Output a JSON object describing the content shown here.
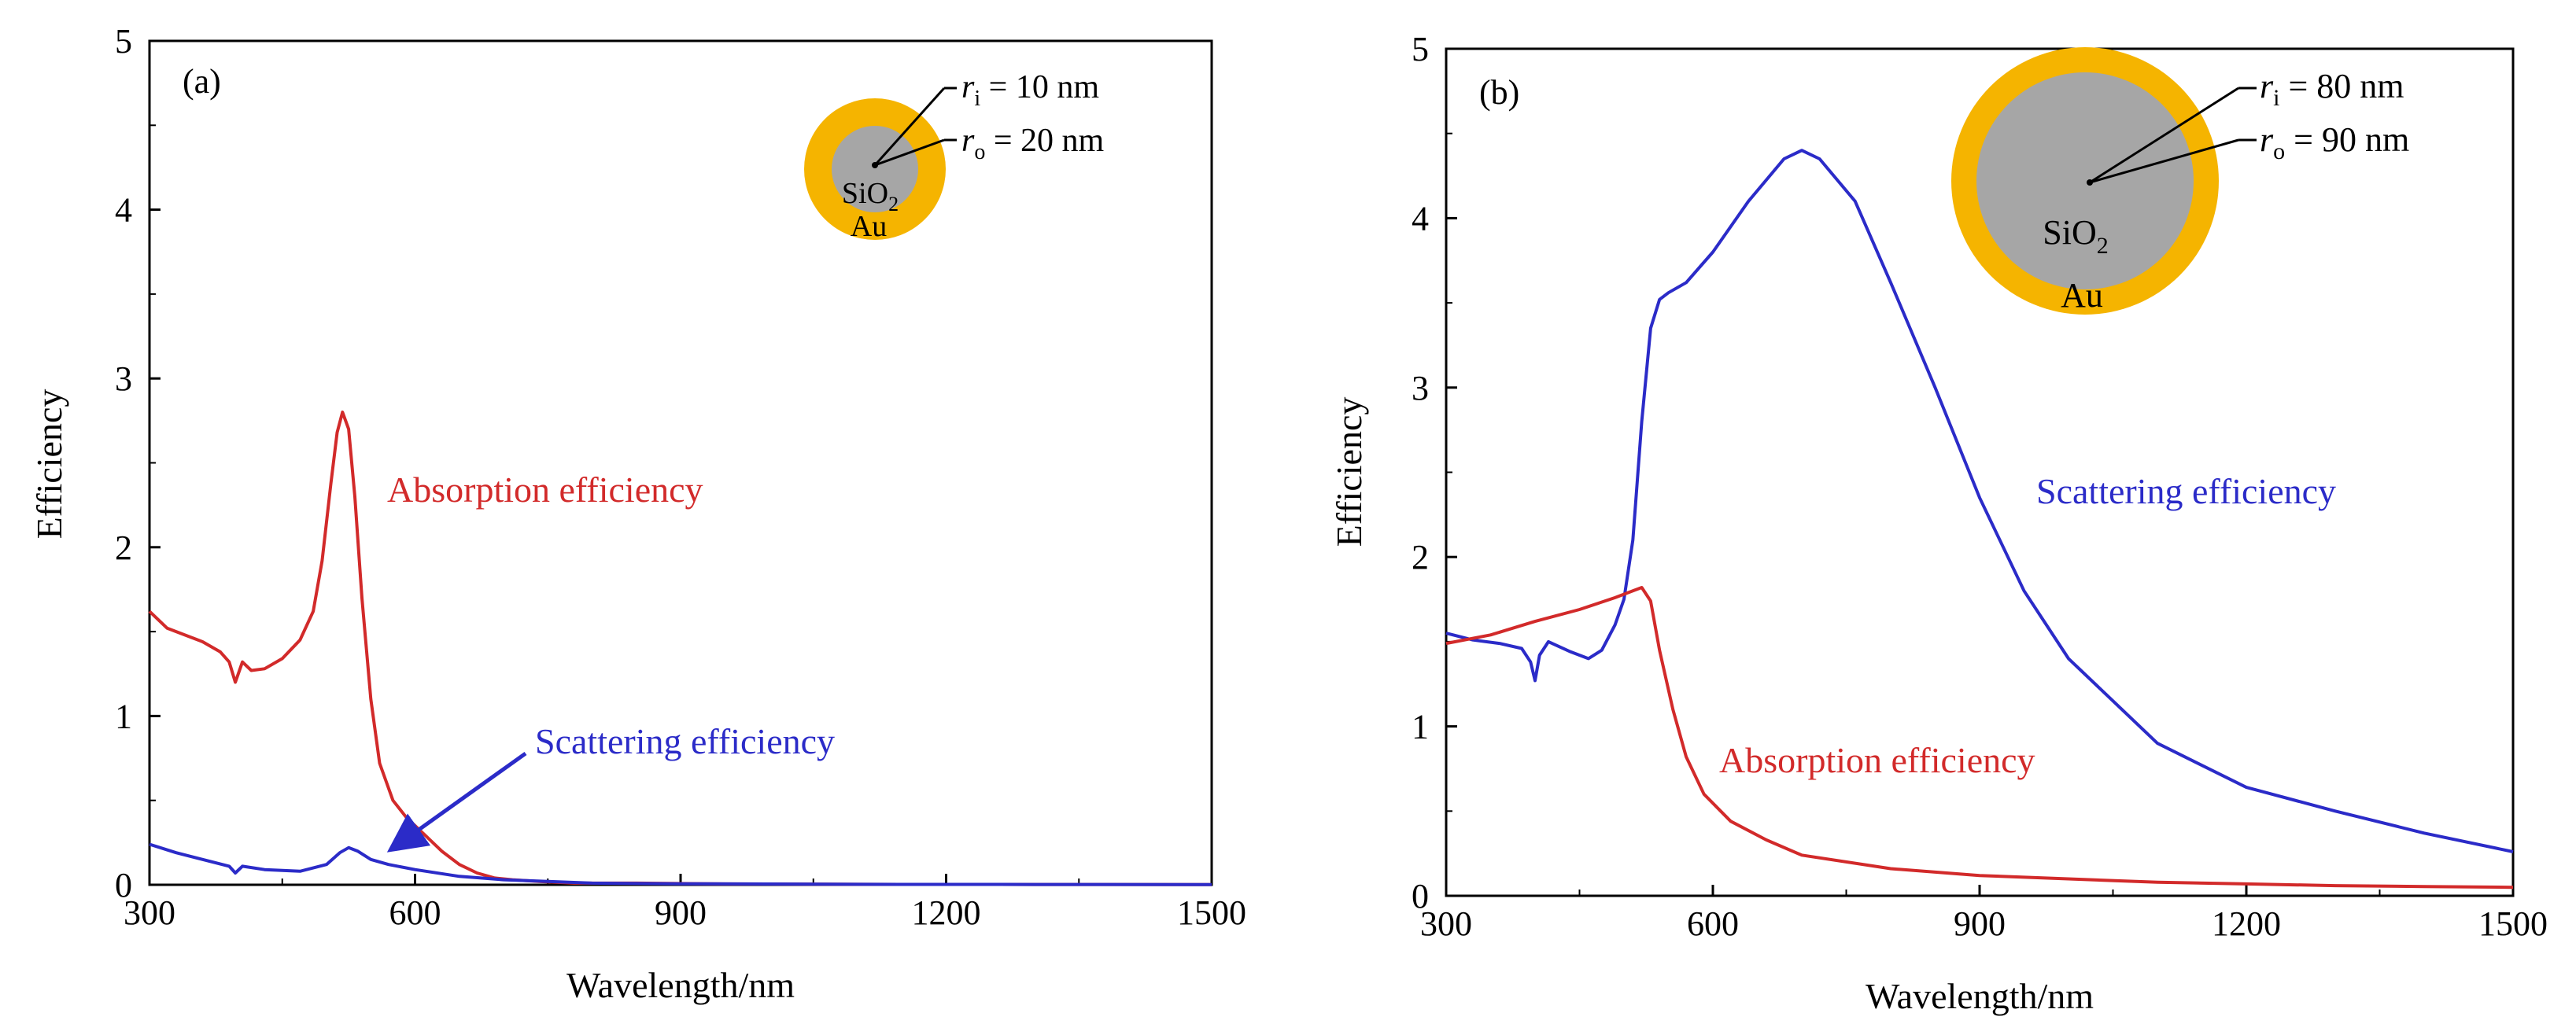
{
  "chart_data": [
    {
      "type": "line",
      "panel_label": "(a)",
      "xlabel": "Wavelength/nm",
      "ylabel": "Efficiency",
      "xlim": [
        300,
        1500
      ],
      "ylim": [
        0,
        5
      ],
      "xticks": [
        300,
        600,
        900,
        1200,
        1500
      ],
      "yticks": [
        0,
        1,
        2,
        3,
        4,
        5
      ],
      "series": [
        {
          "name": "Absorption efficiency",
          "color": "#d22a2a",
          "x": [
            300,
            320,
            340,
            360,
            380,
            390,
            397,
            405,
            415,
            430,
            450,
            470,
            485,
            495,
            505,
            512,
            518,
            525,
            532,
            540,
            550,
            560,
            575,
            590,
            610,
            630,
            650,
            670,
            690,
            710,
            740,
            780,
            850,
            950,
            1100,
            1300,
            1500
          ],
          "y": [
            1.62,
            1.52,
            1.48,
            1.44,
            1.38,
            1.32,
            1.2,
            1.32,
            1.27,
            1.28,
            1.34,
            1.45,
            1.62,
            1.92,
            2.38,
            2.68,
            2.8,
            2.7,
            2.3,
            1.7,
            1.1,
            0.72,
            0.5,
            0.4,
            0.3,
            0.2,
            0.12,
            0.07,
            0.04,
            0.03,
            0.02,
            0.01,
            0.01,
            0.005,
            0.003,
            0.002,
            0.001
          ]
        },
        {
          "name": "Scattering efficiency",
          "color": "#2b2bc8",
          "x": [
            300,
            330,
            360,
            390,
            397,
            405,
            430,
            470,
            500,
            515,
            525,
            535,
            550,
            570,
            600,
            650,
            700,
            800,
            900,
            1100,
            1300,
            1500
          ],
          "y": [
            0.24,
            0.19,
            0.15,
            0.11,
            0.07,
            0.11,
            0.09,
            0.08,
            0.12,
            0.19,
            0.22,
            0.2,
            0.15,
            0.12,
            0.09,
            0.05,
            0.03,
            0.01,
            0.006,
            0.003,
            0.002,
            0.001
          ]
        }
      ],
      "annotations": [
        {
          "text": "Absorption efficiency",
          "color": "#d22a2a"
        },
        {
          "text": "Scattering efficiency",
          "color": "#2b2bc8"
        }
      ],
      "inset": {
        "core": "SiO",
        "core_sub": "2",
        "shell": "Au",
        "ri_label": "r",
        "ri_sub": "i",
        "ri_value": " = 10 nm",
        "ro_label": "r",
        "ro_sub": "o",
        "ro_value": " = 20 nm",
        "core_color": "#a6a6a6",
        "shell_color": "#f5b400"
      }
    },
    {
      "type": "line",
      "panel_label": "(b)",
      "xlabel": "Wavelength/nm",
      "ylabel": "Efficiency",
      "xlim": [
        300,
        1500
      ],
      "ylim": [
        0,
        5
      ],
      "xticks": [
        300,
        600,
        900,
        1200,
        1500
      ],
      "yticks": [
        0,
        1,
        2,
        3,
        4,
        5
      ],
      "series": [
        {
          "name": "Scattering efficiency",
          "color": "#2b2bc8",
          "x": [
            300,
            330,
            360,
            385,
            395,
            400,
            405,
            415,
            440,
            460,
            475,
            490,
            500,
            510,
            520,
            530,
            540,
            550,
            570,
            600,
            640,
            680,
            700,
            720,
            760,
            800,
            850,
            900,
            950,
            1000,
            1100,
            1200,
            1300,
            1400,
            1500
          ],
          "y": [
            1.55,
            1.51,
            1.49,
            1.46,
            1.38,
            1.27,
            1.42,
            1.5,
            1.44,
            1.4,
            1.45,
            1.6,
            1.75,
            2.1,
            2.8,
            3.35,
            3.52,
            3.56,
            3.62,
            3.8,
            4.1,
            4.35,
            4.4,
            4.35,
            4.1,
            3.62,
            3.0,
            2.35,
            1.8,
            1.4,
            0.9,
            0.64,
            0.5,
            0.37,
            0.26
          ]
        },
        {
          "name": "Absorption efficiency",
          "color": "#d22a2a",
          "x": [
            300,
            350,
            400,
            450,
            490,
            510,
            520,
            530,
            540,
            555,
            570,
            590,
            620,
            660,
            700,
            800,
            900,
            1000,
            1100,
            1200,
            1300,
            1400,
            1500
          ],
          "y": [
            1.49,
            1.54,
            1.62,
            1.69,
            1.76,
            1.8,
            1.82,
            1.74,
            1.45,
            1.1,
            0.82,
            0.6,
            0.44,
            0.33,
            0.24,
            0.16,
            0.12,
            0.1,
            0.08,
            0.07,
            0.06,
            0.055,
            0.05
          ]
        }
      ],
      "annotations": [
        {
          "text": "Scattering efficiency",
          "color": "#2b2bc8"
        },
        {
          "text": "Absorption efficiency",
          "color": "#d22a2a"
        }
      ],
      "inset": {
        "core": "SiO",
        "core_sub": "2",
        "shell": "Au",
        "ri_label": "r",
        "ri_sub": "i",
        "ri_value": " = 80 nm",
        "ro_label": "r",
        "ro_sub": "o",
        "ro_value": " = 90 nm",
        "core_color": "#a6a6a6",
        "shell_color": "#f5b400"
      }
    }
  ]
}
